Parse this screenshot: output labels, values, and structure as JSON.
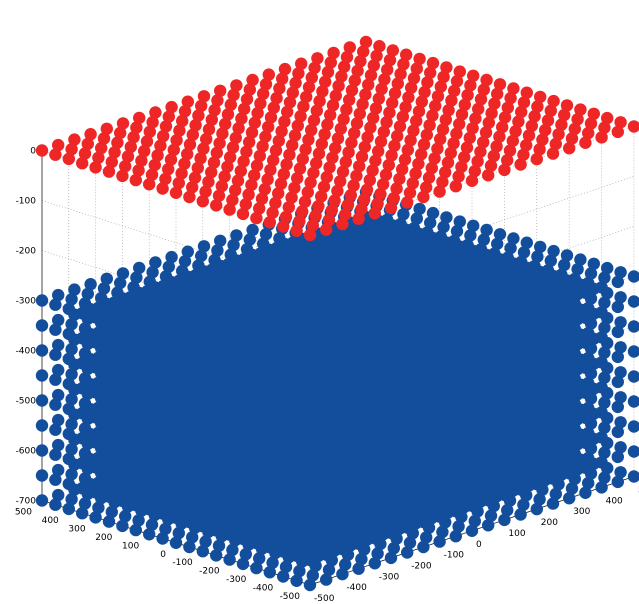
{
  "chart_data": {
    "type": "scatter",
    "title": "",
    "xlabel": "",
    "ylabel": "",
    "zlabel": "",
    "grid": true,
    "view": "3d-isometric",
    "axes": {
      "x": {
        "range": [
          -500,
          500
        ],
        "ticks": [
          -500,
          -400,
          -300,
          -200,
          -100,
          0,
          100,
          200,
          300,
          400,
          500
        ]
      },
      "y": {
        "range": [
          -500,
          500
        ],
        "ticks": [
          -500,
          -400,
          -300,
          -200,
          -100,
          0,
          100,
          200,
          300,
          400,
          500
        ]
      },
      "z": {
        "range": [
          -700,
          0
        ],
        "ticks": [
          0,
          -100,
          -200,
          -300,
          -400,
          -500,
          -600,
          -700
        ]
      }
    },
    "series": [
      {
        "marker": "filled-circle",
        "color": "#ee2626",
        "grid": {
          "x": [
            -500,
            500,
            50
          ],
          "y": [
            -500,
            500,
            50
          ],
          "z": [
            0
          ]
        }
      },
      {
        "marker": "filled-circle",
        "color": "#134e9c",
        "grid": {
          "x": [
            -500,
            500,
            50
          ],
          "y": [
            -500,
            500,
            50
          ],
          "z": [
            -700,
            -300,
            50
          ]
        }
      }
    ]
  }
}
